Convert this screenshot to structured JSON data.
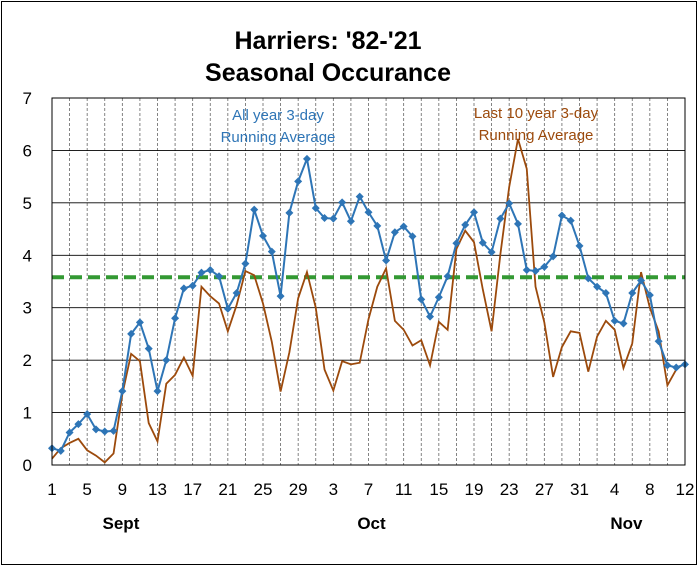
{
  "chart_data": {
    "type": "line",
    "title": "Harriers: '82-'21",
    "subtitle": "Seasonal Occurance",
    "ylim": [
      0,
      7
    ],
    "yticks": [
      0,
      1,
      2,
      3,
      4,
      5,
      6,
      7
    ],
    "x_start": 1,
    "x_end": 73,
    "xtick_positions": [
      1,
      5,
      9,
      13,
      17,
      21,
      25,
      29,
      33,
      37,
      41,
      45,
      49,
      53,
      57,
      61,
      65,
      69,
      73
    ],
    "xtick_labels": [
      "1",
      "5",
      "9",
      "13",
      "17",
      "21",
      "25",
      "29",
      "3",
      "7",
      "11",
      "15",
      "19",
      "23",
      "27",
      "31",
      "4",
      "8",
      "12"
    ],
    "month_labels": [
      {
        "label": "Sept",
        "x": 8.5
      },
      {
        "label": "Oct",
        "x": 37
      },
      {
        "label": "Nov",
        "x": 66
      }
    ],
    "grid": true,
    "average_line": {
      "value": 3.58,
      "color": "#339933"
    },
    "series": [
      {
        "name": "All year 3-day Running Average",
        "label_lines": [
          "All year 3-day",
          "Running Average"
        ],
        "color": "#2e75b6",
        "marker": "diamond",
        "values": [
          0.32,
          0.27,
          0.62,
          0.78,
          0.97,
          0.68,
          0.64,
          0.65,
          1.41,
          2.5,
          2.72,
          2.22,
          1.41,
          2.0,
          2.8,
          3.37,
          3.42,
          3.67,
          3.72,
          3.6,
          2.98,
          3.28,
          3.84,
          4.87,
          4.37,
          4.07,
          3.22,
          4.81,
          5.41,
          5.84,
          4.9,
          4.71,
          4.7,
          5.01,
          4.65,
          5.12,
          4.82,
          4.56,
          3.9,
          4.44,
          4.55,
          4.36,
          3.16,
          2.83,
          3.2,
          3.6,
          4.23,
          4.58,
          4.82,
          4.24,
          4.06,
          4.7,
          4.99,
          4.6,
          3.72,
          3.7,
          3.78,
          3.98,
          4.76,
          4.66,
          4.18,
          3.56,
          3.4,
          3.28,
          2.75,
          2.7,
          3.28,
          3.52,
          3.24,
          2.36,
          1.9,
          1.86,
          1.92
        ]
      },
      {
        "name": "Last 10 year 3-day Running Average",
        "label_lines": [
          "Last 10 year 3-day",
          "Running Average"
        ],
        "color": "#9c4a0c",
        "marker": "none",
        "values": [
          0.12,
          0.32,
          0.42,
          0.5,
          0.28,
          0.18,
          0.05,
          0.22,
          1.35,
          2.12,
          1.98,
          0.8,
          0.45,
          1.55,
          1.72,
          2.05,
          1.7,
          3.4,
          3.22,
          3.08,
          2.55,
          3.05,
          3.7,
          3.62,
          3.08,
          2.35,
          1.4,
          2.15,
          3.18,
          3.68,
          3.0,
          1.82,
          1.42,
          1.98,
          1.92,
          1.95,
          2.78,
          3.4,
          3.75,
          2.75,
          2.58,
          2.28,
          2.38,
          1.9,
          2.73,
          2.58,
          4.12,
          4.47,
          4.25,
          3.35,
          2.55,
          4.02,
          5.3,
          6.22,
          5.65,
          3.4,
          2.72,
          1.68,
          2.25,
          2.55,
          2.52,
          1.78,
          2.45,
          2.75,
          2.58,
          1.85,
          2.32,
          3.68,
          3.0,
          2.55,
          1.52,
          1.82,
          1.95
        ]
      }
    ]
  }
}
